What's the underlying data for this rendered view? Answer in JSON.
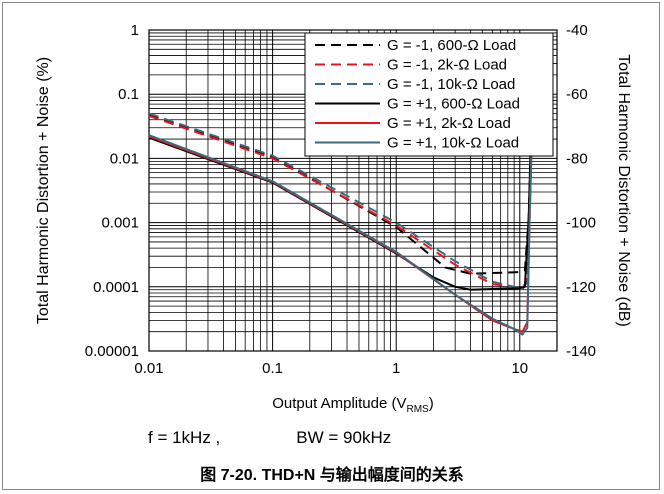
{
  "colors": {
    "black": "#000000",
    "red": "#e8141b",
    "teal": "#3a6a7f",
    "grid": "#000000"
  },
  "conditions": {
    "freq": "f = 1kHz ,",
    "bw": "BW = 90kHz"
  },
  "caption": "图 7-20. THD+N 与输出幅度间的关系",
  "chart_data": {
    "type": "line",
    "title": "",
    "xlabel": {
      "main": "Output Amplitude (V",
      "sub": "RMS",
      "end": ")"
    },
    "ylabel_left": "Total Harmonic Distortion + Noise (%)",
    "ylabel_right": "Total Harmonic Distortion + Noise (dB)",
    "x_scale": "log",
    "y_scale": "log",
    "xlim": [
      0.01,
      20
    ],
    "ylim": [
      1e-05,
      1
    ],
    "right_ylim": [
      -140,
      -40
    ],
    "grid": true,
    "legend_position": "top-right",
    "x_ticks": [
      {
        "value": 0.01,
        "label": "0.01"
      },
      {
        "value": 0.1,
        "label": "0.1"
      },
      {
        "value": 1,
        "label": "1"
      },
      {
        "value": 10,
        "label": "10"
      }
    ],
    "y_ticks_left": [
      {
        "value": 1,
        "label": "1"
      },
      {
        "value": 0.1,
        "label": "0.1"
      },
      {
        "value": 0.01,
        "label": "0.01"
      },
      {
        "value": 0.001,
        "label": "0.001"
      },
      {
        "value": 0.0001,
        "label": "0.0001"
      },
      {
        "value": 1e-05,
        "label": "0.00001"
      }
    ],
    "y_ticks_right": [
      {
        "value": -40,
        "label": "-40"
      },
      {
        "value": -60,
        "label": "-60"
      },
      {
        "value": -80,
        "label": "-80"
      },
      {
        "value": -100,
        "label": "-100"
      },
      {
        "value": -120,
        "label": "-120"
      },
      {
        "value": -140,
        "label": "-140"
      }
    ],
    "series": [
      {
        "name": "G = -1, 600-Ω Load",
        "color": "#000000",
        "dash": true,
        "points": [
          [
            0.01,
            0.048
          ],
          [
            0.1,
            0.0105
          ],
          [
            1,
            0.00085
          ],
          [
            2.5,
            0.0002
          ],
          [
            4,
            0.00016
          ],
          [
            7,
            0.000165
          ],
          [
            10,
            0.00017
          ],
          [
            11,
            0.00018
          ],
          [
            11.8,
            0.0012
          ],
          [
            12.3,
            0.02
          ],
          [
            12.8,
            0.3
          ]
        ]
      },
      {
        "name": "G = -1, 2k-Ω Load",
        "color": "#e8141b",
        "dash": true,
        "points": [
          [
            0.01,
            0.046
          ],
          [
            0.1,
            0.01
          ],
          [
            1,
            0.0009
          ],
          [
            3,
            0.00022
          ],
          [
            6,
            0.00011
          ],
          [
            9,
            0.0001
          ],
          [
            10.5,
            9.5e-05
          ],
          [
            11.5,
            0.00013
          ],
          [
            12,
            0.0012
          ],
          [
            12.5,
            0.02
          ],
          [
            13,
            0.3
          ]
        ]
      },
      {
        "name": "G = -1, 10k-Ω Load",
        "color": "#3a6a7f",
        "dash": true,
        "points": [
          [
            0.01,
            0.05
          ],
          [
            0.1,
            0.011
          ],
          [
            1,
            0.001
          ],
          [
            3,
            0.00025
          ],
          [
            6,
            0.00012
          ],
          [
            9,
            0.0001
          ],
          [
            10.5,
            9e-05
          ],
          [
            11.5,
            0.00012
          ],
          [
            12,
            0.0012
          ],
          [
            12.5,
            0.02
          ],
          [
            13,
            0.3
          ]
        ]
      },
      {
        "name": "G = +1, 600-Ω Load",
        "color": "#000000",
        "dash": false,
        "points": [
          [
            0.01,
            0.021
          ],
          [
            0.1,
            0.0042
          ],
          [
            1,
            0.00033
          ],
          [
            2,
            0.00014
          ],
          [
            3,
            0.0001
          ],
          [
            4,
            9e-05
          ],
          [
            7,
            9.3e-05
          ],
          [
            10,
            9.5e-05
          ],
          [
            11,
            0.0001
          ],
          [
            11.8,
            0.0012
          ],
          [
            12.3,
            0.02
          ],
          [
            12.8,
            0.3
          ]
        ]
      },
      {
        "name": "G = +1, 2k-Ω Load",
        "color": "#e8141b",
        "dash": false,
        "points": [
          [
            0.01,
            0.022
          ],
          [
            0.1,
            0.0043
          ],
          [
            1,
            0.00034
          ],
          [
            3,
            7.5e-05
          ],
          [
            6,
            3e-05
          ],
          [
            9,
            2.2e-05
          ],
          [
            10.5,
            2e-05
          ],
          [
            11.5,
            2.8e-05
          ],
          [
            12,
            0.0012
          ],
          [
            12.5,
            0.02
          ],
          [
            13,
            0.3
          ]
        ]
      },
      {
        "name": "G = +1, 10k-Ω Load",
        "color": "#3a6a7f",
        "dash": false,
        "points": [
          [
            0.01,
            0.023
          ],
          [
            0.1,
            0.0044
          ],
          [
            1,
            0.00035
          ],
          [
            3,
            7.5e-05
          ],
          [
            6,
            3.2e-05
          ],
          [
            9,
            2.2e-05
          ],
          [
            10.5,
            1.8e-05
          ],
          [
            11.5,
            2.3e-05
          ],
          [
            12,
            0.0012
          ],
          [
            12.5,
            0.02
          ],
          [
            13,
            0.3
          ]
        ]
      }
    ]
  }
}
